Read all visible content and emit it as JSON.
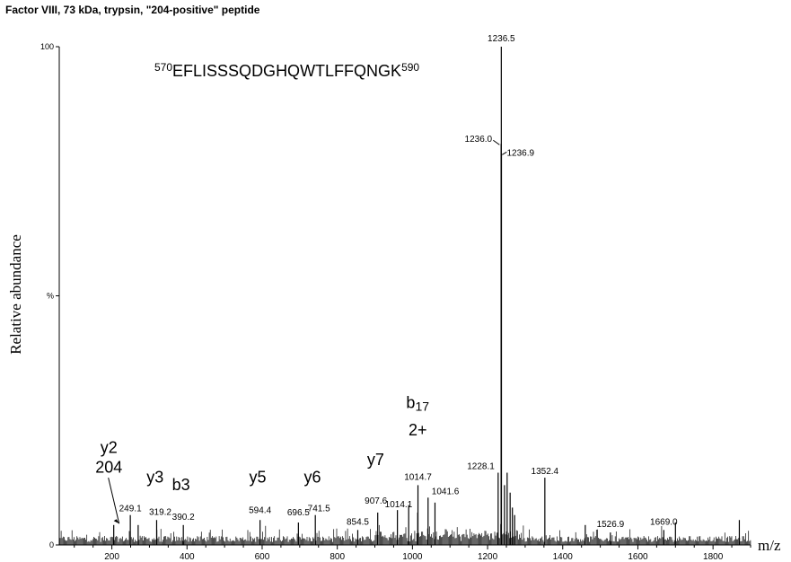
{
  "chart_data": {
    "type": "line",
    "title": "Factor VIII, 73 kDa, trypsin,  \"204-positive\" peptide",
    "xlabel": "m/z",
    "ylabel": "Relative abundance",
    "xlim": [
      60,
      1900
    ],
    "ylim": [
      0,
      100
    ],
    "x_ticks": [
      200,
      400,
      600,
      800,
      1000,
      1200,
      1400,
      1600,
      1800
    ],
    "y_tick_labels": [
      {
        "value": 100,
        "label": "100"
      },
      {
        "value": 50,
        "label": "%"
      },
      {
        "value": 0,
        "label": "0"
      }
    ],
    "grid": false,
    "sequence": {
      "start": "570",
      "residues": "EFLISSSQDGHQWTLFFQNGK",
      "end": "590"
    },
    "peaks": [
      {
        "mz": 1236.5,
        "intensity": 100,
        "label": "1236.5"
      },
      {
        "mz": 1236.0,
        "intensity": 80.5,
        "label": "1236.0"
      },
      {
        "mz": 1236.9,
        "intensity": 78.5,
        "label": "1236.9"
      },
      {
        "mz": 1228.1,
        "intensity": 14.5,
        "label": "1228.1"
      },
      {
        "mz": 1352.4,
        "intensity": 13.5,
        "label": "1352.4"
      },
      {
        "mz": 1014.7,
        "intensity": 12.0,
        "label": "1014.7"
      },
      {
        "mz": 1041.6,
        "intensity": 9.5,
        "label": "1041.6"
      },
      {
        "mz": 1014.1,
        "intensity": 6.5,
        "label": "1014.1"
      },
      {
        "mz": 907.6,
        "intensity": 6.5,
        "label": "907.6"
      },
      {
        "mz": 854.5,
        "intensity": 3.0,
        "label": "854.5"
      },
      {
        "mz": 741.5,
        "intensity": 6.0,
        "label": "741.5"
      },
      {
        "mz": 696.5,
        "intensity": 4.5,
        "label": "696.5"
      },
      {
        "mz": 594.4,
        "intensity": 5.0,
        "label": "594.4"
      },
      {
        "mz": 390.2,
        "intensity": 4.0,
        "label": "390.2"
      },
      {
        "mz": 319.2,
        "intensity": 5.0,
        "label": "319.2"
      },
      {
        "mz": 249.1,
        "intensity": 6.0,
        "label": "249.1"
      },
      {
        "mz": 1526.9,
        "intensity": 2.5,
        "label": "1526.9"
      },
      {
        "mz": 1669.0,
        "intensity": 3.0,
        "label": "1669.0"
      },
      {
        "mz": 1245.0,
        "intensity": 12.0,
        "label": ""
      },
      {
        "mz": 1252.0,
        "intensity": 14.5,
        "label": ""
      },
      {
        "mz": 1260.0,
        "intensity": 10.5,
        "label": ""
      },
      {
        "mz": 1266.0,
        "intensity": 7.5,
        "label": ""
      },
      {
        "mz": 1272.0,
        "intensity": 6.0,
        "label": ""
      },
      {
        "mz": 1060.0,
        "intensity": 8.5,
        "label": ""
      },
      {
        "mz": 990.0,
        "intensity": 8.0,
        "label": ""
      },
      {
        "mz": 960.0,
        "intensity": 7.0,
        "label": ""
      },
      {
        "mz": 270.0,
        "intensity": 4.0,
        "label": ""
      },
      {
        "mz": 205.0,
        "intensity": 4.0,
        "label": ""
      },
      {
        "mz": 1460.0,
        "intensity": 4.0,
        "label": ""
      },
      {
        "mz": 1700.0,
        "intensity": 4.5,
        "label": ""
      },
      {
        "mz": 1870.0,
        "intensity": 5.0,
        "label": ""
      }
    ],
    "ion_annotations": [
      {
        "text": "2+",
        "mz": 1236.5,
        "level": 113.5
      },
      {
        "text": "y2",
        "mz": 192,
        "level": 18.5
      },
      {
        "text": "204",
        "mz": 192,
        "level": 14.5
      },
      {
        "text": "y3",
        "mz": 315,
        "level": 12.5
      },
      {
        "text": "b3",
        "mz": 384,
        "level": 11.0
      },
      {
        "text": "y5",
        "mz": 588,
        "level": 12.5
      },
      {
        "text": "y6",
        "mz": 734,
        "level": 12.5
      },
      {
        "text": "y7",
        "mz": 902,
        "level": 16.0
      },
      {
        "text": "b17",
        "mz": 1014,
        "level": 27.5
      },
      {
        "text": "2+",
        "mz": 1014,
        "level": 22.0
      }
    ]
  }
}
